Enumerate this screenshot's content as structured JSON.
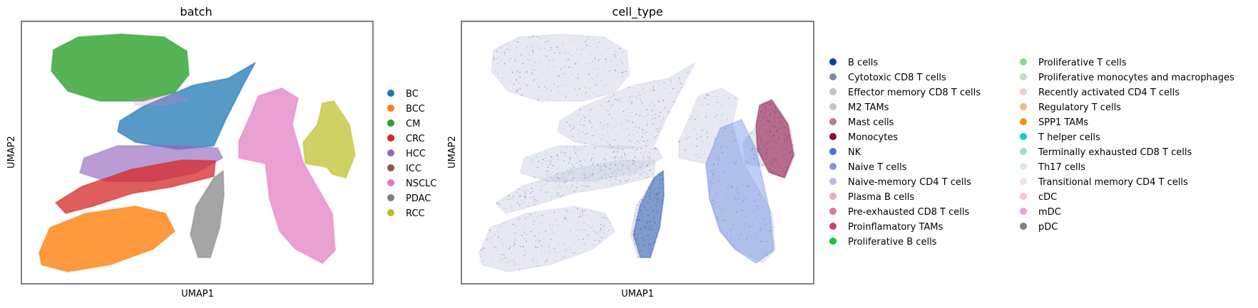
{
  "chart_data": [
    {
      "type": "scatter",
      "title": "batch",
      "xlabel": "UMAP1",
      "ylabel": "UMAP2",
      "xticks": [],
      "yticks": [],
      "grid": false,
      "legend_position": "right",
      "series": [
        {
          "name": "BC",
          "color": "#1f77b4"
        },
        {
          "name": "BCC",
          "color": "#ff7f0e"
        },
        {
          "name": "CM",
          "color": "#2ca02c"
        },
        {
          "name": "CRC",
          "color": "#d62728"
        },
        {
          "name": "HCC",
          "color": "#9467bd"
        },
        {
          "name": "ICC",
          "color": "#8c564b"
        },
        {
          "name": "NSCLC",
          "color": "#e377c2"
        },
        {
          "name": "PDAC",
          "color": "#7f7f7f"
        },
        {
          "name": "RCC",
          "color": "#bcbd22"
        }
      ]
    },
    {
      "type": "scatter",
      "title": "cell_type",
      "xlabel": "UMAP1",
      "ylabel": "UMAP2",
      "xticks": [],
      "yticks": [],
      "grid": false,
      "legend_position": "right",
      "series": [
        {
          "name": "B cells",
          "color": "#023fa5"
        },
        {
          "name": "Cytotoxic CD8 T cells",
          "color": "#7d87b9"
        },
        {
          "name": "Effector memory CD8 T cells",
          "color": "#bec1d4"
        },
        {
          "name": "M2 TAMs",
          "color": "#d6bcc0"
        },
        {
          "name": "Mast cells",
          "color": "#bb7784"
        },
        {
          "name": "Monocytes",
          "color": "#8e063b"
        },
        {
          "name": "NK",
          "color": "#4a6fe3"
        },
        {
          "name": "Naive T cells",
          "color": "#8595e1"
        },
        {
          "name": "Naive-memory CD4 T cells",
          "color": "#b5bbe3"
        },
        {
          "name": "Plasma B cells",
          "color": "#e6afb9"
        },
        {
          "name": "Pre-exhausted CD8 T cells",
          "color": "#e07b91"
        },
        {
          "name": "Proinflamatory TAMs",
          "color": "#d33f6a"
        },
        {
          "name": "Proliferative B cells",
          "color": "#11c638"
        },
        {
          "name": "Proliferative T cells",
          "color": "#8dd593"
        },
        {
          "name": "Proliferative monocytes and macrophages",
          "color": "#c6dec7"
        },
        {
          "name": "Recently activated CD4 T cells",
          "color": "#ead3c6"
        },
        {
          "name": "Regulatory T cells",
          "color": "#f0b98d"
        },
        {
          "name": "SPP1 TAMs",
          "color": "#ef9708"
        },
        {
          "name": "T helper cells",
          "color": "#0fcfc0"
        },
        {
          "name": "Terminally exhausted CD8 T cells",
          "color": "#9cded6"
        },
        {
          "name": "Th17 cells",
          "color": "#d5eae7"
        },
        {
          "name": "Transitional memory CD4 T cells",
          "color": "#f3e1eb"
        },
        {
          "name": "cDC",
          "color": "#f6c4e1"
        },
        {
          "name": "mDC",
          "color": "#f79cd4"
        },
        {
          "name": "pDC",
          "color": "#7f7f7f"
        }
      ]
    }
  ]
}
